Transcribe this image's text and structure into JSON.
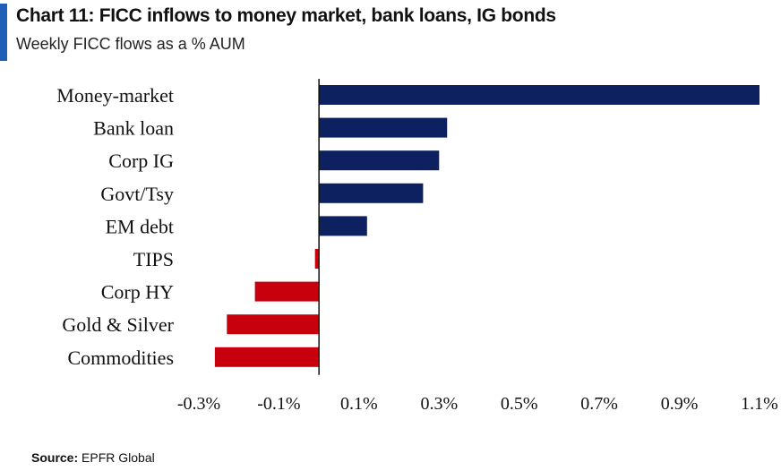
{
  "header": {
    "title": "Chart 11: FICC inflows to money market, bank loans, IG bonds",
    "subtitle": "Weekly FICC flows as a % AUM"
  },
  "footer": {
    "source_label": "Source:",
    "source_value": "EPFR Global"
  },
  "colors": {
    "positive": "#0d2060",
    "negative": "#c8000e",
    "accent": "#1f5fb8"
  },
  "chart_data": {
    "type": "bar",
    "orientation": "horizontal",
    "categories": [
      "Money-market",
      "Bank loan",
      "Corp IG",
      "Govt/Tsy",
      "EM debt",
      "TIPS",
      "Corp HY",
      "Gold & Silver",
      "Commodities"
    ],
    "values": [
      1.1,
      0.32,
      0.3,
      0.26,
      0.12,
      -0.01,
      -0.16,
      -0.23,
      -0.26
    ],
    "unit": "%",
    "xlim": [
      -0.3,
      1.1
    ],
    "xticks": [
      "-0.3%",
      "-0.1%",
      "0.1%",
      "0.3%",
      "0.5%",
      "0.7%",
      "0.9%",
      "1.1%"
    ],
    "title": "Chart 11: FICC inflows to money market, bank loans, IG bonds",
    "subtitle": "Weekly FICC flows as a % AUM",
    "xlabel": "",
    "ylabel": "",
    "grid": false,
    "legend": "none"
  }
}
